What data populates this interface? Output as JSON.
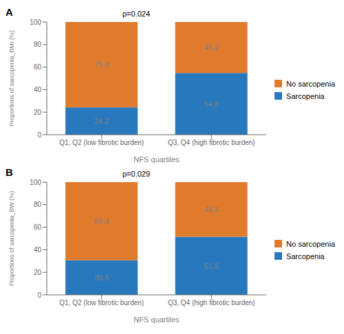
{
  "chart_data": [
    {
      "type": "bar",
      "title": "A",
      "annotations": [
        "p=0.024"
      ],
      "ylabel": "Proportions of sarcopenia_BMI (%)",
      "xlabel": "NFS quartiles",
      "categories": [
        "Q1, Q2 (low fibrotic burden)",
        "Q3, Q4 (high fibrotic burden)"
      ],
      "series": [
        {
          "name": "Sarcopenia",
          "color": "#2878bd",
          "values": [
            24.2,
            54.8
          ]
        },
        {
          "name": "No sarcopenia",
          "color": "#e07b2e",
          "values": [
            75.8,
            45.2
          ]
        }
      ],
      "ylim": [
        0,
        100
      ],
      "yticks": [
        0,
        20,
        40,
        60,
        80,
        100
      ],
      "stacked": true,
      "data_labels": true,
      "legend": "right"
    },
    {
      "type": "bar",
      "title": "B",
      "annotations": [
        "p=0.029"
      ],
      "ylabel": "Proportions of sarcopenia_BW (%)",
      "xlabel": "NFS quartiles",
      "categories": [
        "Q1, Q2 (low fibrotic burden)",
        "Q3, Q4 (high fibrotic burden)"
      ],
      "series": [
        {
          "name": "Sarcopenia",
          "color": "#2878bd",
          "values": [
            30.6,
            51.6
          ]
        },
        {
          "name": "No sarcopenia",
          "color": "#e07b2e",
          "values": [
            69.4,
            48.4
          ]
        }
      ],
      "ylim": [
        0,
        100
      ],
      "yticks": [
        0,
        20,
        40,
        60,
        80,
        100
      ],
      "stacked": true,
      "data_labels": true,
      "legend": "right"
    }
  ]
}
